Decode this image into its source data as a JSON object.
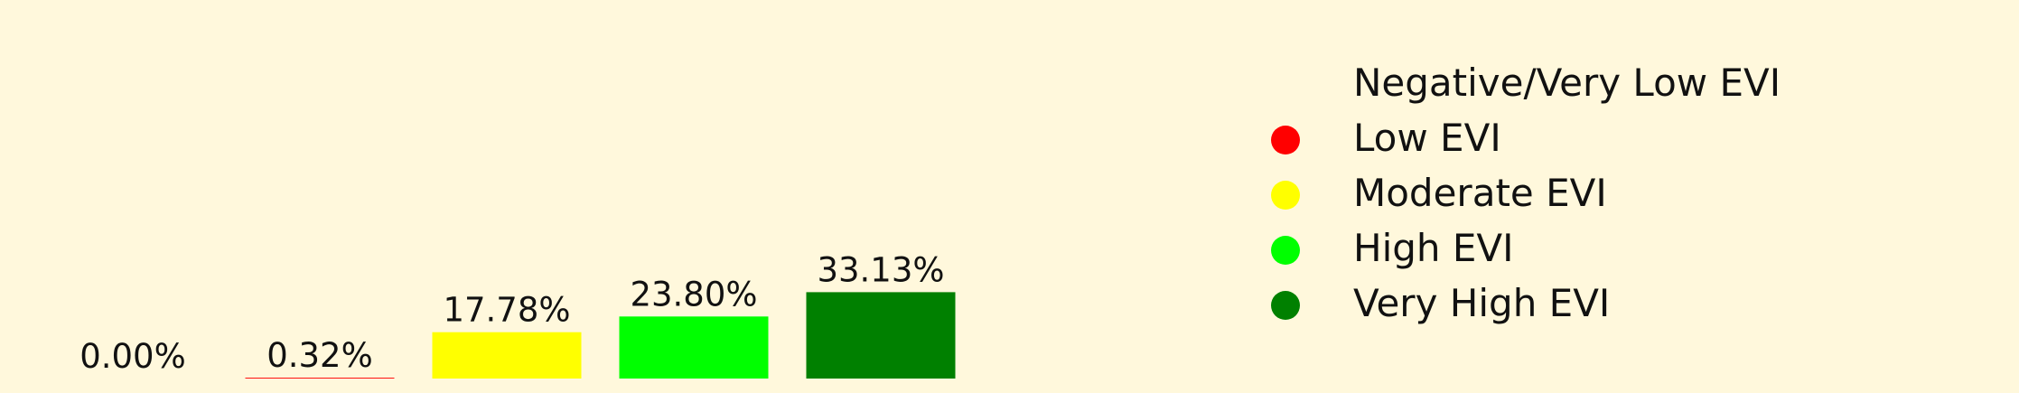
{
  "chart_data": {
    "type": "bar",
    "categories": [
      "Negative/Very Low EVI",
      "Low EVI",
      "Moderate EVI",
      "High EVI",
      "Very High EVI"
    ],
    "values": [
      0.0,
      0.32,
      17.78,
      23.8,
      33.13
    ],
    "data_labels": [
      "0.00%",
      "0.32%",
      "17.78%",
      "23.80%",
      "33.13%"
    ],
    "colors": [
      "#8b0000",
      "#ff0000",
      "#ffff00",
      "#00ff00",
      "#008000"
    ],
    "legend": {
      "placement": "right",
      "entries": [
        {
          "label": "Negative/Very Low EVI",
          "color": "#8b0000",
          "marker_visible": false
        },
        {
          "label": "Low EVI",
          "color": "#ff0000",
          "marker_visible": true
        },
        {
          "label": "Moderate EVI",
          "color": "#ffff00",
          "marker_visible": true
        },
        {
          "label": "High EVI",
          "color": "#00ff00",
          "marker_visible": true
        },
        {
          "label": "Very High EVI",
          "color": "#008000",
          "marker_visible": true
        }
      ]
    },
    "ylim": [
      0,
      52
    ],
    "grid": false,
    "axes_visible": false,
    "background_color": "#fff8dc"
  }
}
